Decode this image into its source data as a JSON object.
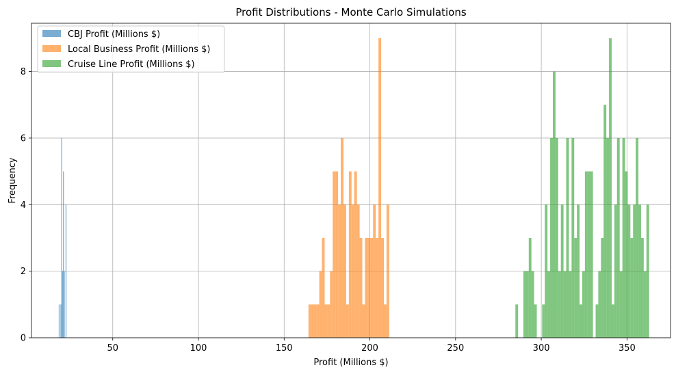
{
  "chart_data": {
    "type": "bar",
    "title": "Profit Distributions - Monte Carlo Simulations",
    "xlabel": "Profit (Millions $)",
    "ylabel": "Frequency",
    "xlim": [
      2.6,
      375.4
    ],
    "ylim": [
      0,
      9.45
    ],
    "xticks": [
      50,
      100,
      150,
      200,
      250,
      300,
      350
    ],
    "yticks": [
      0,
      2,
      4,
      6,
      8
    ],
    "grid": true,
    "legend_position": "upper-left",
    "bar_alpha": 0.6,
    "series": [
      {
        "name": "CBJ Profit (Millions $)",
        "color": "#1f77b4",
        "bin_start": 18.5,
        "bin_width": 0.5,
        "counts": [
          1,
          0,
          1,
          6,
          2,
          5,
          2,
          0,
          4
        ]
      },
      {
        "name": "Local Business Profit (Millions $)",
        "color": "#ff7f0e",
        "bin_start": 164.2,
        "bin_width": 1.57,
        "counts": [
          1,
          1,
          1,
          1,
          2,
          3,
          1,
          1,
          2,
          5,
          5,
          4,
          6,
          4,
          1,
          5,
          4,
          5,
          4,
          3,
          1,
          3,
          3,
          3,
          4,
          3,
          9,
          3,
          1,
          4
        ]
      },
      {
        "name": "Cruise Line Profit (Millions $)",
        "color": "#2ca02c",
        "bin_start": 284.9,
        "bin_width": 1.56,
        "counts": [
          1,
          0,
          0,
          2,
          2,
          3,
          2,
          1,
          0,
          0,
          1,
          4,
          2,
          6,
          8,
          6,
          2,
          4,
          2,
          6,
          2,
          6,
          3,
          4,
          1,
          2,
          5,
          5,
          5,
          0,
          1,
          2,
          3,
          7,
          6,
          9,
          1,
          4,
          6,
          2,
          6,
          5,
          4,
          3,
          4,
          6,
          4,
          3,
          2,
          4
        ]
      }
    ]
  }
}
